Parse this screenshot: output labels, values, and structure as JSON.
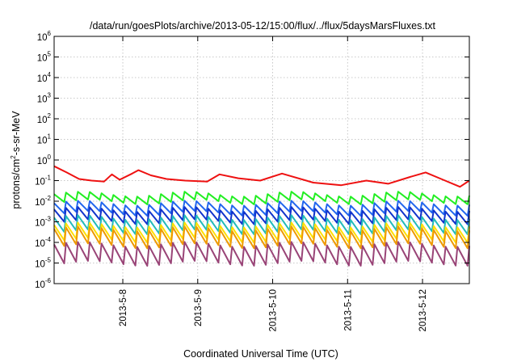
{
  "chart_data": {
    "type": "line",
    "title": "/data/run/goesPlots/archive/2013-05-12/15:00/flux/../flux/5daysMarsFluxes.txt",
    "xlabel": "Coordinated Universal Time (UTC)",
    "ylabel": {
      "pre": "protons/cm",
      "sup": "2",
      "post": "-s-sr-MeV"
    },
    "yscale": "log",
    "ylim": [
      1e-06,
      1000000.0
    ],
    "y_ticks": [
      {
        "value": 1000000.0,
        "base": "10",
        "exp": "6"
      },
      {
        "value": 100000.0,
        "base": "10",
        "exp": "5"
      },
      {
        "value": 10000.0,
        "base": "10",
        "exp": "4"
      },
      {
        "value": 1000.0,
        "base": "10",
        "exp": "3"
      },
      {
        "value": 100.0,
        "base": "10",
        "exp": "2"
      },
      {
        "value": 10.0,
        "base": "10",
        "exp": "1"
      },
      {
        "value": 1.0,
        "base": "10",
        "exp": "0"
      },
      {
        "value": 0.1,
        "base": "10",
        "exp": "-1"
      },
      {
        "value": 0.01,
        "base": "10",
        "exp": "-2"
      },
      {
        "value": 0.001,
        "base": "10",
        "exp": "-3"
      },
      {
        "value": 0.0001,
        "base": "10",
        "exp": "-4"
      },
      {
        "value": 1e-05,
        "base": "10",
        "exp": "-5"
      },
      {
        "value": 1e-06,
        "base": "10",
        "exp": "-6"
      }
    ],
    "xlim": [
      "2013-05-07T02:00",
      "2013-05-12T15:00"
    ],
    "x_ticks": [
      {
        "date": "2013-05-08T00:00",
        "label": "2013-5-8"
      },
      {
        "date": "2013-05-09T00:00",
        "label": "2013-5-9"
      },
      {
        "date": "2013-05-10T00:00",
        "label": "2013-5-10"
      },
      {
        "date": "2013-05-11T00:00",
        "label": "2013-5-11"
      },
      {
        "date": "2013-05-12T00:00",
        "label": "2013-5-12"
      }
    ],
    "grid": true,
    "legend": "none",
    "series": [
      {
        "color": "#ee1111",
        "points": [
          [
            "2013-05-07T02:00",
            0.5
          ],
          [
            "2013-05-07T06:00",
            0.25
          ],
          [
            "2013-05-07T10:00",
            0.12
          ],
          [
            "2013-05-07T14:00",
            0.1
          ],
          [
            "2013-05-07T18:00",
            0.09
          ],
          [
            "2013-05-07T20:30",
            0.2
          ],
          [
            "2013-05-07T23:00",
            0.11
          ],
          [
            "2013-05-08T03:00",
            0.22
          ],
          [
            "2013-05-08T05:00",
            0.32
          ],
          [
            "2013-05-08T09:00",
            0.18
          ],
          [
            "2013-05-08T14:00",
            0.12
          ],
          [
            "2013-05-08T20:00",
            0.1
          ],
          [
            "2013-05-09T03:00",
            0.09
          ],
          [
            "2013-05-09T07:00",
            0.2
          ],
          [
            "2013-05-09T13:00",
            0.13
          ],
          [
            "2013-05-09T20:00",
            0.1
          ],
          [
            "2013-05-10T03:00",
            0.22
          ],
          [
            "2013-05-10T13:00",
            0.08
          ],
          [
            "2013-05-10T22:00",
            0.06
          ],
          [
            "2013-05-11T06:00",
            0.1
          ],
          [
            "2013-05-11T13:00",
            0.07
          ],
          [
            "2013-05-11T20:00",
            0.15
          ],
          [
            "2013-05-12T01:00",
            0.25
          ],
          [
            "2013-05-12T06:00",
            0.12
          ],
          [
            "2013-05-12T12:00",
            0.05
          ],
          [
            "2013-05-12T15:00",
            0.1
          ]
        ]
      },
      {
        "color": "#22ee22",
        "sawtooth": {
          "base": 0.006,
          "peak": 0.022,
          "period_hours": 3.8,
          "min_ratio": 0.42
        }
      },
      {
        "color": "#2266ee",
        "sawtooth": {
          "base": 0.002,
          "peak": 0.008,
          "period_hours": 3.8,
          "min_ratio": 0.32
        }
      },
      {
        "color": "#1133cc",
        "sawtooth": {
          "base": 0.0009,
          "peak": 0.004,
          "period_hours": 3.8,
          "min_ratio": 0.25
        }
      },
      {
        "color": "#22bbbb",
        "sawtooth": {
          "base": 0.0004,
          "peak": 0.0016,
          "period_hours": 3.8,
          "min_ratio": 0.2
        }
      },
      {
        "color": "#ffe000",
        "sawtooth": {
          "base": 0.0001,
          "peak": 0.0007,
          "period_hours": 3.8,
          "min_ratio": 0.18
        }
      },
      {
        "color": "#ee9900",
        "sawtooth": {
          "base": 5e-05,
          "peak": 0.00045,
          "period_hours": 3.8,
          "min_ratio": 0.15
        }
      },
      {
        "color": "#994477",
        "sawtooth": {
          "base": 8e-06,
          "peak": 8e-05,
          "period_hours": 3.8,
          "min_ratio": 0.12
        }
      }
    ]
  }
}
